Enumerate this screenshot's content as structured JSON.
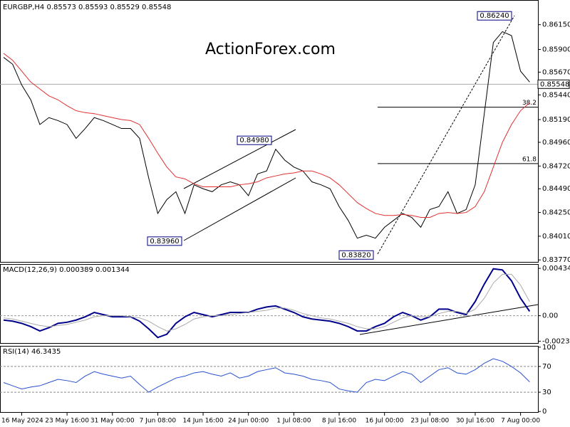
{
  "chart_data": [
    {
      "type": "line",
      "title": "EURGBP,H4 0.85573 0.85593 0.85529 0.85548",
      "watermark": "ActionForex.com",
      "ylim": [
        0.8375,
        0.864
      ],
      "yticks": [
        {
          "value": 0.8615,
          "label": "0.86150"
        },
        {
          "value": 0.859,
          "label": "0.85900"
        },
        {
          "value": 0.8567,
          "label": "0.85670"
        },
        {
          "value": 0.8544,
          "label": "0.85440"
        },
        {
          "value": 0.8519,
          "label": "0.85190"
        },
        {
          "value": 0.8496,
          "label": "0.84960"
        },
        {
          "value": 0.8472,
          "label": "0.84720"
        },
        {
          "value": 0.8449,
          "label": "0.84490"
        },
        {
          "value": 0.8425,
          "label": "0.84250"
        },
        {
          "value": 0.8401,
          "label": "0.84010"
        },
        {
          "value": 0.8377,
          "label": "0.83770"
        }
      ],
      "current_price": {
        "value": 0.85548,
        "label": "0.85548"
      },
      "annotations": [
        {
          "value": 0.8624,
          "label": "0.86240"
        },
        {
          "value": 0.8498,
          "label": "0.84980"
        },
        {
          "value": 0.8396,
          "label": "0.83960"
        },
        {
          "value": 0.8382,
          "label": "0.83820"
        }
      ],
      "fib_levels": [
        38.2,
        61.8
      ],
      "series": [
        {
          "color": "#000000",
          "values": [
            0.8582,
            0.8575,
            0.8554,
            0.8539,
            0.8514,
            0.8521,
            0.8518,
            0.8514,
            0.85,
            0.851,
            0.8521,
            0.8518,
            0.8514,
            0.851,
            0.851,
            0.85,
            0.846,
            0.8424,
            0.8438,
            0.8446,
            0.8424,
            0.8453,
            0.8449,
            0.8446,
            0.8453,
            0.8456,
            0.8453,
            0.8442,
            0.8464,
            0.8467,
            0.8489,
            0.8478,
            0.8471,
            0.8467,
            0.8456,
            0.8453,
            0.8449,
            0.8431,
            0.8417,
            0.8399,
            0.8402,
            0.8399,
            0.841,
            0.8417,
            0.8424,
            0.842,
            0.841,
            0.8428,
            0.8431,
            0.8446,
            0.8424,
            0.8428,
            0.8453,
            0.8525,
            0.8597,
            0.8608,
            0.8604,
            0.8568,
            0.8557
          ]
        },
        {
          "color": "#e03030",
          "values": [
            0.8586,
            0.8579,
            0.8568,
            0.8557,
            0.855,
            0.8543,
            0.8539,
            0.8533,
            0.8528,
            0.8526,
            0.8525,
            0.8523,
            0.8521,
            0.8519,
            0.8518,
            0.8514,
            0.85,
            0.8485,
            0.8471,
            0.8461,
            0.8459,
            0.8454,
            0.8451,
            0.8451,
            0.8451,
            0.8451,
            0.8453,
            0.8454,
            0.8456,
            0.846,
            0.8462,
            0.8464,
            0.8465,
            0.8467,
            0.8467,
            0.8464,
            0.846,
            0.8453,
            0.8444,
            0.8435,
            0.8429,
            0.8424,
            0.8422,
            0.8422,
            0.8423,
            0.8422,
            0.842,
            0.842,
            0.8424,
            0.8425,
            0.8424,
            0.8425,
            0.8431,
            0.8446,
            0.8471,
            0.8496,
            0.8514,
            0.8528,
            0.8536
          ]
        }
      ]
    },
    {
      "type": "line",
      "title": "MACD(12,26,9) 0.000389 0.001344",
      "ylim": [
        -0.00257,
        0.00474
      ],
      "yticks": [
        0.004342,
        {
          "value": 0,
          "label": "0.00"
        },
        -0.002336
      ],
      "series": [
        {
          "color": "#00008b",
          "values": [
            -0.0004,
            -0.0005,
            -0.0007,
            -0.001,
            -0.0014,
            -0.0011,
            -0.0007,
            -0.0006,
            -0.0004,
            -0.0001,
            0.0003,
            0.0001,
            -0.0001,
            -0.0001,
            -0.0001,
            -0.0005,
            -0.0012,
            -0.002,
            -0.0017,
            -0.0007,
            -0.0001,
            0.0003,
            0.0001,
            -0.0001,
            0.0001,
            0.0003,
            0.0003,
            0.0003,
            0.0006,
            0.0008,
            0.0009,
            0.0006,
            0.0003,
            -0.0001,
            -0.0003,
            -0.0004,
            -0.0005,
            -0.0007,
            -0.001,
            -0.0014,
            -0.0014,
            -0.001,
            -0.0007,
            -0.0001,
            0.0003,
            0,
            -0.0004,
            -0.0001,
            0.0006,
            0.0006,
            0.0003,
            0.0001,
            0.0013,
            0.0029,
            0.0043,
            0.0042,
            0.0032,
            0.0016,
            0.0004
          ]
        },
        {
          "color": "#aaaaaa",
          "values": [
            -0.0002,
            -0.0003,
            -0.0005,
            -0.0007,
            -0.0009,
            -0.001,
            -0.0009,
            -0.0008,
            -0.0006,
            -0.0004,
            -0.0001,
            0,
            0,
            0,
            -0.0001,
            -0.0002,
            -0.0005,
            -0.001,
            -0.0014,
            -0.0012,
            -0.0008,
            -0.0003,
            -0.0001,
            0,
            0,
            0.0001,
            0.0002,
            0.0003,
            0.0004,
            0.0005,
            0.0007,
            0.0007,
            0.0005,
            0.0002,
            0,
            -0.0002,
            -0.0003,
            -0.0005,
            -0.0007,
            -0.001,
            -0.0012,
            -0.0012,
            -0.001,
            -0.0006,
            -0.0002,
            0,
            -0.0001,
            -0.0001,
            0.0002,
            0.0004,
            0.0004,
            0.0002,
            0.0006,
            0.0016,
            0.003,
            0.0038,
            0.0038,
            0.0028,
            0.0013
          ]
        }
      ]
    },
    {
      "type": "line",
      "title": "RSI(14) 46.3435",
      "ylim": [
        -2,
        102
      ],
      "yticks": [
        0,
        30,
        70,
        100
      ],
      "levels": [
        30,
        70
      ],
      "categories": [
        null,
        null,
        "16 May 2024",
        null,
        null,
        null,
        null,
        "23 May 16:00",
        null,
        null,
        null,
        null,
        "31 May 00:00",
        null,
        null,
        null,
        null,
        "7 Jun 08:00",
        null,
        null,
        null,
        null,
        "14 Jun 16:00",
        null,
        null,
        null,
        null,
        "24 Jun 00:00",
        null,
        null,
        null,
        null,
        "1 Jul 08:00",
        null,
        null,
        null,
        null,
        "8 Jul 16:00",
        null,
        null,
        null,
        null,
        "16 Jul 00:00",
        null,
        null,
        null,
        null,
        "23 Jul 08:00",
        null,
        null,
        null,
        null,
        "30 Jul 16:00",
        null,
        null,
        null,
        null,
        "7 Aug 00:00",
        null
      ],
      "series": [
        {
          "color": "#2850d0",
          "values": [
            45,
            40,
            35,
            38,
            40,
            45,
            50,
            48,
            45,
            55,
            62,
            58,
            55,
            52,
            55,
            42,
            30,
            38,
            45,
            52,
            55,
            60,
            62,
            58,
            55,
            60,
            52,
            55,
            62,
            65,
            68,
            60,
            58,
            55,
            50,
            48,
            45,
            35,
            32,
            30,
            45,
            50,
            48,
            55,
            62,
            58,
            45,
            55,
            65,
            68,
            60,
            58,
            65,
            75,
            82,
            78,
            70,
            60,
            46
          ]
        }
      ]
    }
  ]
}
